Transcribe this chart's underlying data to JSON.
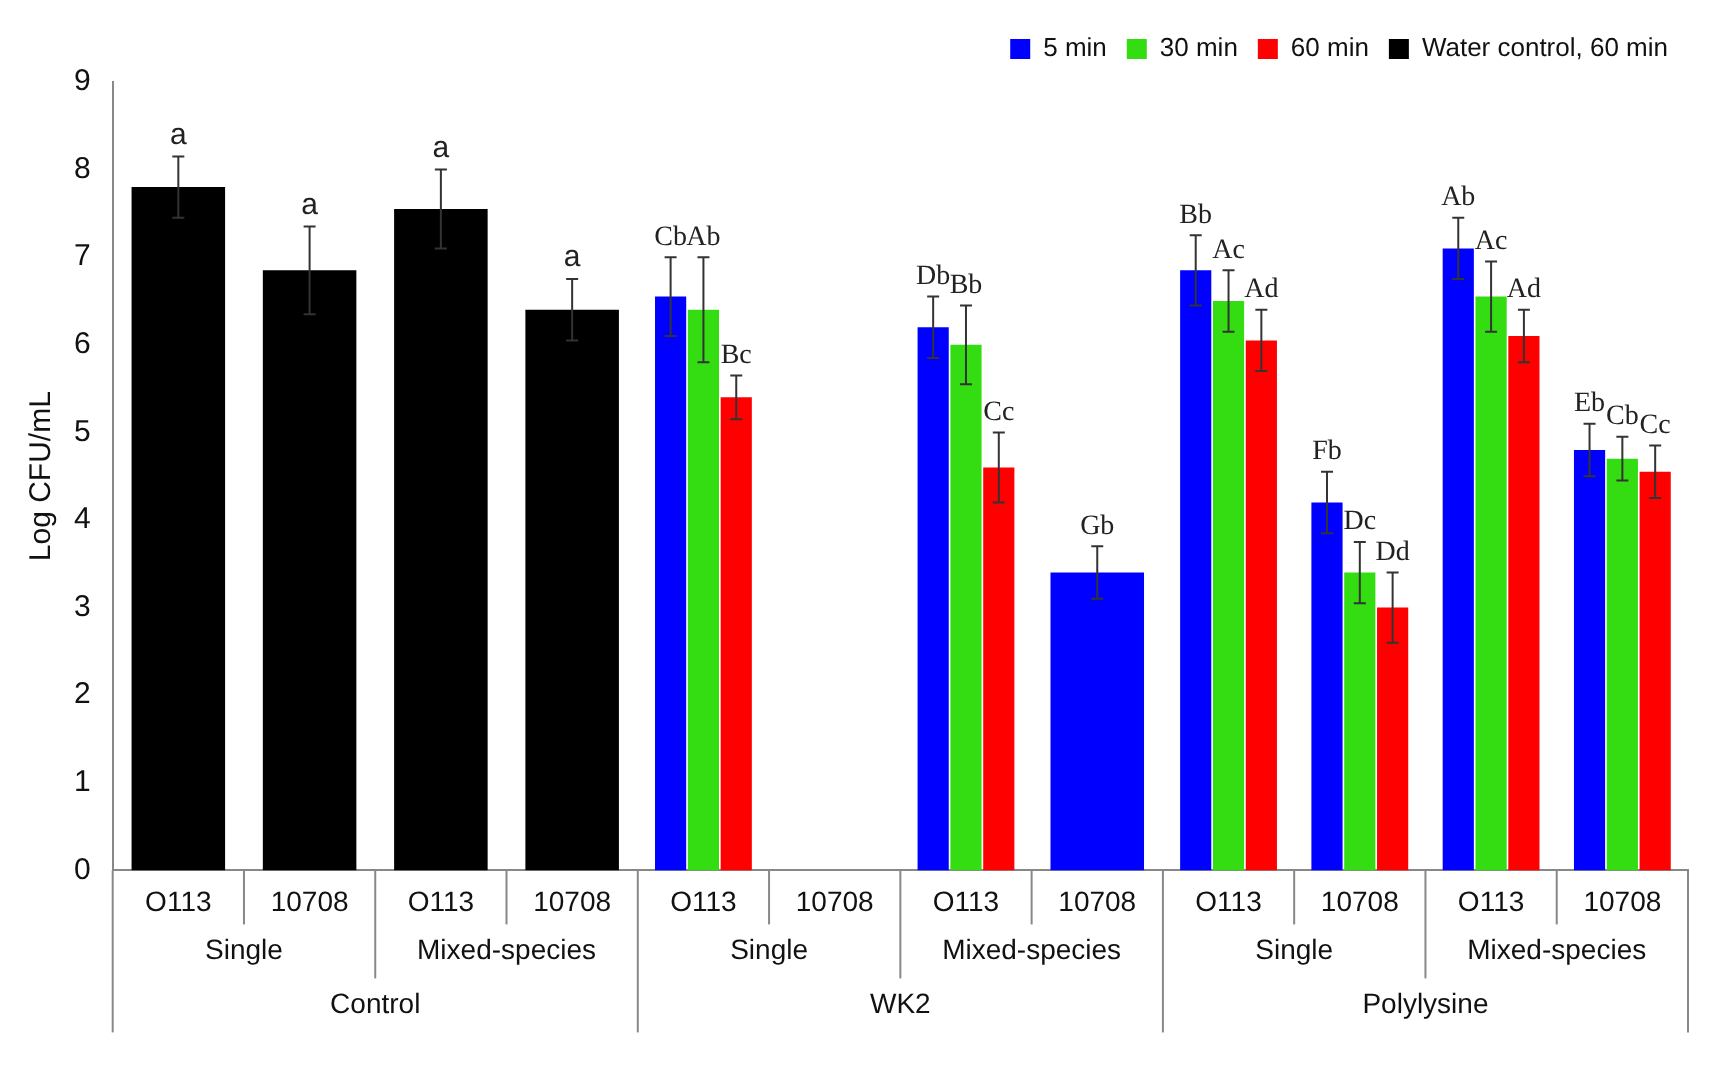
{
  "chart_data": {
    "type": "bar",
    "ylabel": "Log CFU/mL",
    "categories": [
      "O113",
      "10708",
      "O113",
      "10708",
      "O113",
      "10708",
      "O113",
      "10708",
      "O113",
      "10708",
      "O113",
      "10708"
    ],
    "annotations": [
      "Single",
      "Mixed-species",
      "Single",
      "Mixed-species",
      "Single",
      "Mixed-species",
      "Control",
      "WK2",
      "Polylysine"
    ],
    "series": [
      {
        "name": "5 min",
        "color": "#0000ff",
        "values": [
          null,
          null,
          null,
          null,
          6.55,
          null,
          6.2,
          3.4,
          6.85,
          4.2,
          7.1,
          4.8
        ],
        "errors": [
          null,
          null,
          null,
          null,
          0.45,
          null,
          0.35,
          0.3,
          0.4,
          0.35,
          0.35,
          0.3
        ],
        "value_labels": [
          null,
          null,
          null,
          null,
          "Cb",
          null,
          "Db",
          "Gb",
          "Bb",
          "Fb",
          "Ab",
          "Eb"
        ]
      },
      {
        "name": "30 min",
        "color": "#33dd11",
        "values": [
          null,
          null,
          null,
          null,
          6.4,
          null,
          6.0,
          null,
          6.5,
          3.4,
          6.55,
          4.7
        ],
        "errors": [
          null,
          null,
          null,
          null,
          0.6,
          null,
          0.45,
          null,
          0.35,
          0.35,
          0.4,
          0.25
        ],
        "value_labels": [
          null,
          null,
          null,
          null,
          "Ab",
          null,
          "Bb",
          null,
          "Ac",
          "Dc",
          "Ac",
          "Cb"
        ]
      },
      {
        "name": "60 min",
        "color": "#ff0000",
        "values": [
          null,
          null,
          null,
          null,
          5.4,
          null,
          4.6,
          null,
          6.05,
          3.0,
          6.1,
          4.55
        ],
        "errors": [
          null,
          null,
          null,
          null,
          0.25,
          null,
          0.4,
          null,
          0.35,
          0.4,
          0.3,
          0.3
        ],
        "value_labels": [
          null,
          null,
          null,
          null,
          "Bc",
          null,
          "Cc",
          null,
          "Ad",
          "Dd",
          "Ad",
          "Cc"
        ]
      },
      {
        "name": "Water control, 60 min",
        "color": "#000000",
        "values": [
          7.8,
          6.85,
          7.55,
          6.4,
          null,
          null,
          null,
          null,
          null,
          null,
          null,
          null
        ],
        "errors": [
          0.35,
          0.5,
          0.45,
          0.35,
          null,
          null,
          null,
          null,
          null,
          null,
          null,
          null
        ],
        "value_labels": [
          "a",
          "a",
          "a",
          "a",
          null,
          null,
          null,
          null,
          null,
          null,
          null,
          null
        ]
      }
    ],
    "ylim": [
      0,
      9
    ],
    "yticks": [
      0,
      1,
      2,
      3,
      4,
      5,
      6,
      7,
      8,
      9
    ],
    "grid": false,
    "legend": "top right"
  }
}
